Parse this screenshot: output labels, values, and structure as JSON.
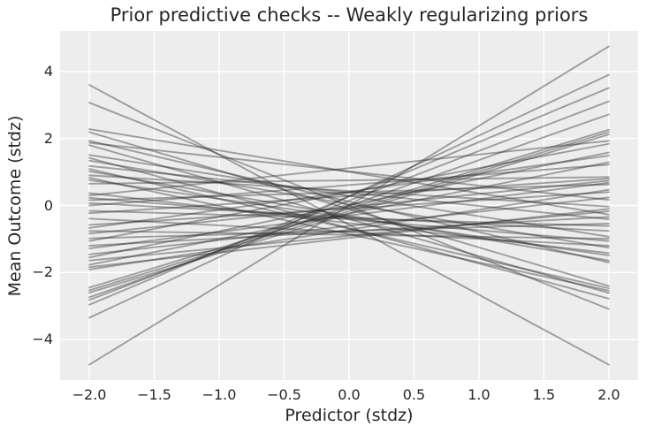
{
  "chart_data": {
    "type": "line",
    "title": "Prior predictive checks -- Weakly regularizing priors",
    "xlabel": "Predictor (stdz)",
    "ylabel": "Mean Outcome (stdz)",
    "xlim": [
      -2.225,
      2.225
    ],
    "ylim": [
      -5.21,
      5.21
    ],
    "grid": true,
    "legend": "none",
    "panel_background": "#ededed",
    "gridline_color": "#ffffff",
    "line_color": "#2e2e2e",
    "line_alpha": 0.42,
    "line_width": 1.9,
    "text_color": "#262626",
    "x_ticks": [
      -2.0,
      -1.5,
      -1.0,
      -0.5,
      0.0,
      0.5,
      1.0,
      1.5,
      2.0
    ],
    "x_tick_labels": [
      "−2.0",
      "−1.5",
      "−1.0",
      "−0.5",
      "0.0",
      "0.5",
      "1.0",
      "1.5",
      "2.0"
    ],
    "y_ticks": [
      -4,
      -2,
      0,
      2,
      4
    ],
    "y_tick_labels": [
      "−4",
      "−2",
      "0",
      "2",
      "4"
    ],
    "n_lines": 48,
    "line_x": [
      -2,
      2
    ],
    "lines_format": "each entry is [y at x=-2, y at x=+2] for one prior predictive draw",
    "lines": [
      [
        3.6,
        -4.75
      ],
      [
        3.07,
        -3.09
      ],
      [
        -3.35,
        3.9
      ],
      [
        -2.96,
        3.51
      ],
      [
        -2.82,
        3.11
      ],
      [
        -2.74,
        2.72
      ],
      [
        -2.6,
        2.12
      ],
      [
        -2.53,
        2.19
      ],
      [
        -2.45,
        2.26
      ],
      [
        -4.75,
        4.75
      ],
      [
        2.28,
        -0.27
      ],
      [
        2.19,
        -2.4
      ],
      [
        1.93,
        -1.7
      ],
      [
        1.87,
        0.17
      ],
      [
        1.8,
        -2.61
      ],
      [
        1.51,
        -0.93
      ],
      [
        1.42,
        -2.78
      ],
      [
        1.34,
        -1.26
      ],
      [
        1.18,
        -0.41
      ],
      [
        1.09,
        -2.47
      ],
      [
        1.02,
        -1.64
      ],
      [
        0.9,
        -0.03
      ],
      [
        0.83,
        -2.54
      ],
      [
        0.76,
        -1.49
      ],
      [
        0.65,
        0.85
      ],
      [
        0.37,
        -1.42
      ],
      [
        0.3,
        1.93
      ],
      [
        0.23,
        -1.06
      ],
      [
        0.16,
        0.63
      ],
      [
        0.07,
        -0.76
      ],
      [
        0.0,
        1.22
      ],
      [
        -0.16,
        -0.61
      ],
      [
        -0.23,
        0.8
      ],
      [
        -0.39,
        -1.2
      ],
      [
        -0.58,
        0.4
      ],
      [
        -0.67,
        1.49
      ],
      [
        -0.76,
        -0.99
      ],
      [
        -0.84,
        0.74
      ],
      [
        -0.98,
        -0.54
      ],
      [
        -1.06,
        1.84
      ],
      [
        -1.2,
        -0.34
      ],
      [
        -1.28,
        0.68
      ],
      [
        -1.46,
        0.24
      ],
      [
        -1.55,
        1.58
      ],
      [
        -1.64,
        -0.17
      ],
      [
        -1.77,
        1.29
      ],
      [
        -1.84,
        -0.1
      ],
      [
        -1.91,
        0.47
      ]
    ]
  }
}
